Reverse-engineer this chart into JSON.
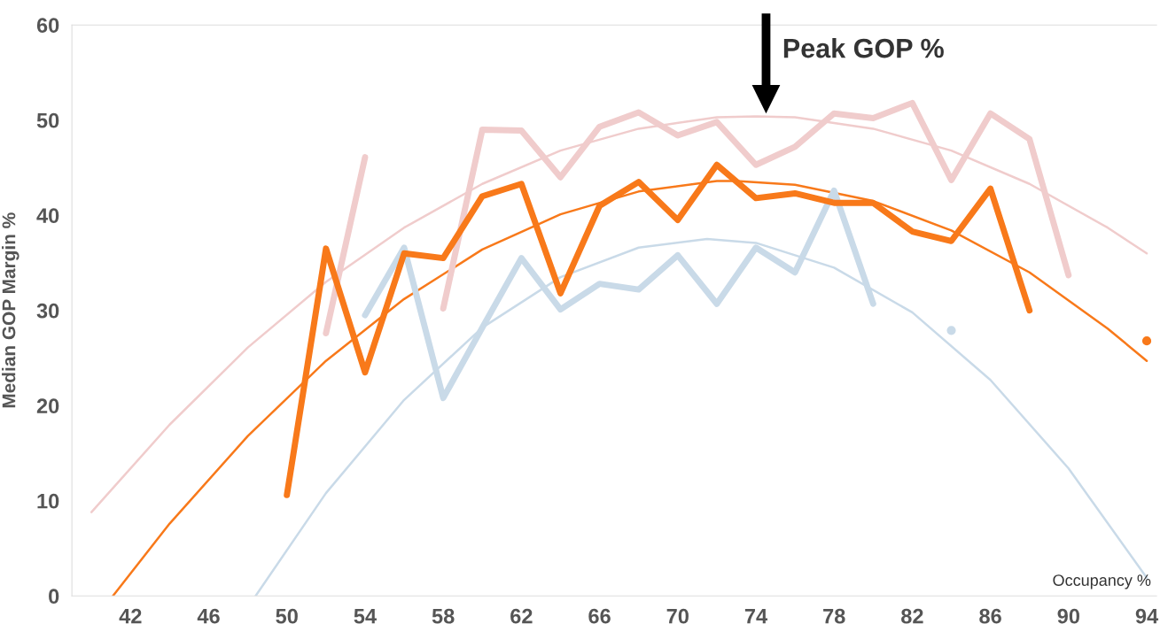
{
  "chart_data": {
    "type": "line",
    "ylabel": "Median GOP Margin %",
    "xlabel": "Occupancy %",
    "xlim": [
      39,
      94.5
    ],
    "ylim": [
      0,
      60
    ],
    "xticks": [
      42,
      46,
      50,
      54,
      58,
      62,
      66,
      70,
      74,
      78,
      82,
      86,
      90,
      94
    ],
    "yticks": [
      0,
      10,
      20,
      30,
      40,
      50,
      60
    ],
    "annotations": [
      "Peak GOP %"
    ],
    "grid": false,
    "legend": false,
    "marker": "none",
    "line_style": "solid",
    "series": [
      {
        "color": "#f0cccc",
        "x": [
          40,
          44,
          48,
          52,
          56,
          60,
          64,
          68,
          72,
          74,
          76,
          80,
          84,
          88,
          92,
          94
        ],
        "values": [
          8.8,
          18.0,
          26.1,
          33.0,
          38.7,
          43.3,
          46.8,
          49.1,
          50.3,
          50.4,
          50.3,
          49.1,
          46.8,
          43.3,
          38.7,
          36.0
        ]
      },
      {
        "color": "#c9dae8",
        "x": [
          48.4,
          52,
          56,
          60,
          64,
          68,
          71.5,
          74,
          78,
          82,
          86,
          90,
          94
        ],
        "values": [
          0,
          10.8,
          20.6,
          28.2,
          33.5,
          36.6,
          37.5,
          37.1,
          34.5,
          29.8,
          22.7,
          13.4,
          1.9
        ]
      },
      {
        "color": "#f8791a",
        "x": [
          41.1,
          44,
          48,
          52,
          56,
          60,
          64,
          68,
          72,
          73,
          76,
          80,
          84,
          88,
          92,
          94
        ],
        "values": [
          0,
          7.6,
          16.8,
          24.7,
          31.2,
          36.4,
          40.1,
          42.5,
          43.6,
          43.6,
          43.2,
          41.5,
          38.4,
          34.0,
          28.1,
          24.7
        ]
      },
      {
        "color": "#f0cccc",
        "x": [
          52,
          54,
          56,
          58,
          60,
          62,
          64,
          66,
          68,
          70,
          72,
          74,
          76,
          78,
          80,
          82,
          84,
          86,
          88,
          90
        ],
        "values": [
          27.6,
          46.1,
          null,
          30.2,
          49.0,
          48.9,
          44.0,
          49.3,
          50.8,
          48.4,
          49.8,
          45.3,
          47.2,
          50.7,
          50.2,
          51.8,
          43.7,
          50.7,
          48.0,
          33.7
        ]
      },
      {
        "color": "#c9dae8",
        "x": [
          54,
          56,
          58,
          60,
          62,
          64,
          66,
          68,
          70,
          72,
          74,
          76,
          78,
          80,
          82,
          84
        ],
        "values": [
          29.5,
          36.6,
          20.8,
          28.2,
          35.5,
          30.1,
          32.8,
          32.2,
          35.8,
          30.7,
          36.6,
          34.0,
          42.6,
          30.7,
          null,
          27.9
        ]
      },
      {
        "color": "#f8791a",
        "x": [
          50,
          52,
          54,
          56,
          58,
          60,
          62,
          64,
          66,
          68,
          70,
          72,
          74,
          76,
          78,
          80,
          82,
          84,
          86,
          88,
          90,
          92,
          94
        ],
        "values": [
          10.6,
          36.5,
          23.5,
          36.0,
          35.5,
          42.0,
          43.3,
          31.8,
          41.0,
          43.5,
          39.5,
          45.3,
          41.8,
          42.3,
          41.3,
          41.3,
          38.3,
          37.3,
          42.8,
          30.0,
          null,
          null,
          26.8
        ]
      }
    ]
  }
}
